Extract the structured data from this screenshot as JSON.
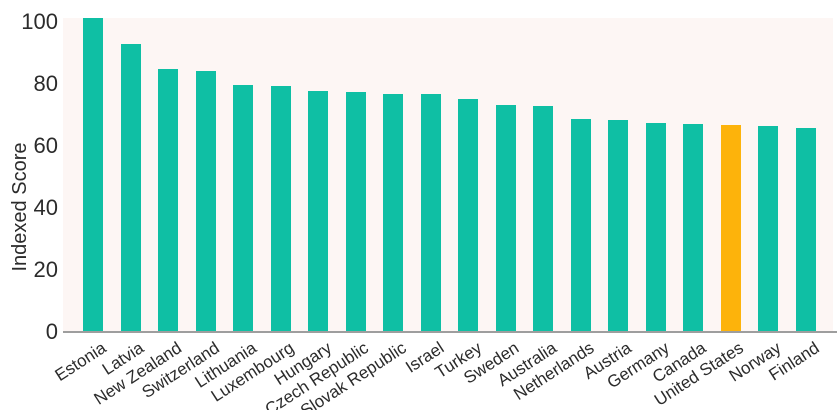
{
  "chart_data": {
    "type": "bar",
    "title": "",
    "ylabel": "Indexed Score",
    "xlabel": "",
    "categories": [
      "Estonia",
      "Latvia",
      "New Zealand",
      "Switzerland",
      "Lithuania",
      "Luxembourg",
      "Hungary",
      "Czech Republic",
      "Slovak Republic",
      "Israel",
      "Turkey",
      "Sweden",
      "Australia",
      "Netherlands",
      "Austria",
      "Germany",
      "Canada",
      "United States",
      "Norway",
      "Finland"
    ],
    "values": [
      101,
      92.5,
      84.5,
      84,
      79.5,
      79,
      77.5,
      77,
      76.5,
      76.5,
      75,
      73,
      72.5,
      68.5,
      68,
      67,
      66.8,
      66.5,
      66.2,
      65.5
    ],
    "yticks": [
      0,
      20,
      40,
      60,
      80,
      100
    ],
    "ylim": [
      0,
      101
    ],
    "grid": false,
    "legend": false,
    "x_tick_rotation_deg": -33,
    "bar_color": "#0fbfa4",
    "highlight_category": "United States",
    "highlight_color": "#fdb30b",
    "panel_background": "#fdf6f4",
    "axis_line_color": "#9e9e9e",
    "text_color": "#2b2b2b"
  }
}
